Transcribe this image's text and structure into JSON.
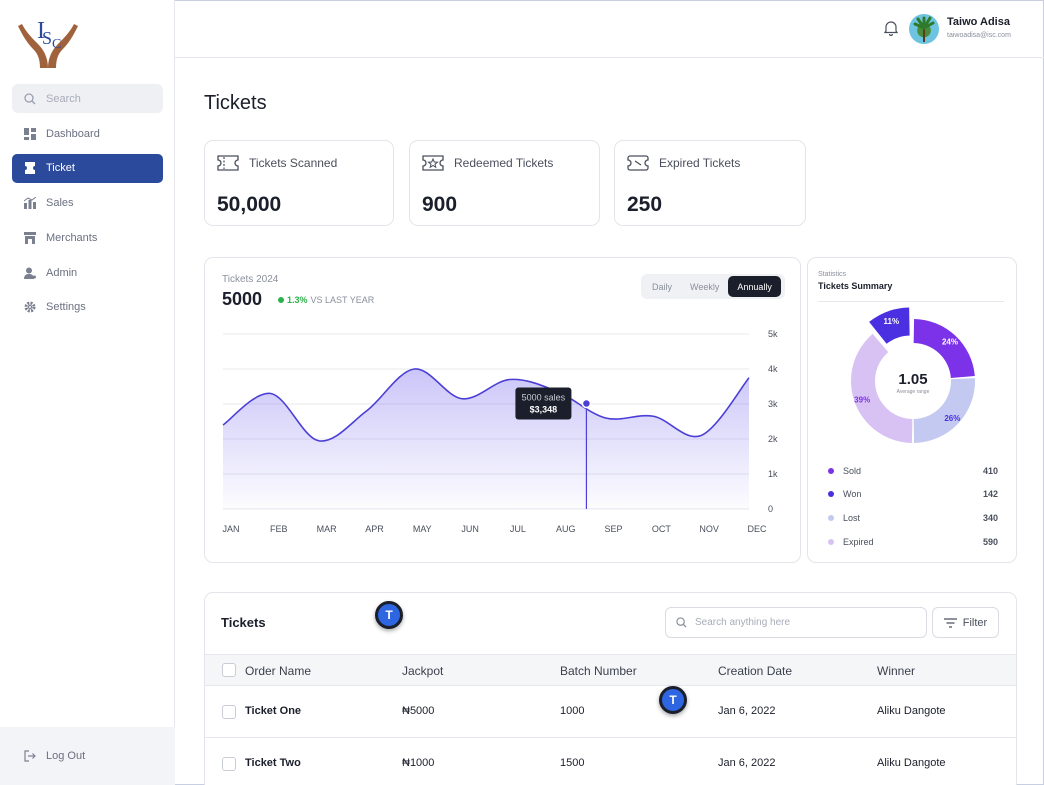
{
  "user": {
    "name": "Taiwo Adisa",
    "email": "taiwoadisa@isc.com"
  },
  "sidebar": {
    "search_placeholder": "Search",
    "items": [
      {
        "label": "Dashboard",
        "icon": "dashboard-icon",
        "active": false
      },
      {
        "label": "Ticket",
        "icon": "ticket-icon",
        "active": true
      },
      {
        "label": "Sales",
        "icon": "sales-chart-icon",
        "active": false
      },
      {
        "label": "Merchants",
        "icon": "store-icon",
        "active": false
      },
      {
        "label": "Admin",
        "icon": "user-icon",
        "active": false
      },
      {
        "label": "Settings",
        "icon": "gear-icon",
        "active": false
      }
    ],
    "logout_label": "Log Out"
  },
  "page": {
    "title": "Tickets"
  },
  "stats": [
    {
      "label": "Tickets Scanned",
      "value": "50,000",
      "icon": "ticket-scan-icon"
    },
    {
      "label": "Redeemed Tickets",
      "value": "900",
      "icon": "ticket-redeem-icon"
    },
    {
      "label": "Expired Tickets",
      "value": "250",
      "icon": "ticket-expired-icon"
    }
  ],
  "sales_chart": {
    "subtitle": "Tickets 2024",
    "value": "5000",
    "change_pct": "1.3%",
    "change_label": "VS LAST YEAR",
    "periods": [
      "Daily",
      "Weekly",
      "Annually"
    ],
    "active_period": "Annually",
    "tooltip": {
      "line1": "5000 sales",
      "line2": "$3,348"
    }
  },
  "chart_data": {
    "type": "area",
    "categories": [
      "JAN",
      "FEB",
      "MAR",
      "APR",
      "MAY",
      "JUN",
      "JUL",
      "AUG",
      "SEP",
      "OCT",
      "NOV",
      "DEC"
    ],
    "values": [
      2400,
      3300,
      1950,
      2800,
      4000,
      3150,
      3700,
      3350,
      2600,
      2650,
      2100,
      3750
    ],
    "y_ticks": [
      "0",
      "1k",
      "2k",
      "3k",
      "4k",
      "5k"
    ],
    "ylim": [
      0,
      5000
    ],
    "highlight_position": 7.6,
    "line_color": "#4b3fd6",
    "grid": true
  },
  "summary": {
    "subtitle": "Statistics",
    "title": "Tickets Summary",
    "center_value": "1.05",
    "center_label": "Average range",
    "items": [
      {
        "label": "Sold",
        "value": "410",
        "pct": "24%",
        "color": "#7c32e8"
      },
      {
        "label": "Won",
        "value": "142",
        "pct": "11%",
        "color": "#4a30e0"
      },
      {
        "label": "Lost",
        "value": "340",
        "pct": "26%",
        "color": "#c3c9f0"
      },
      {
        "label": "Expired",
        "value": "590",
        "pct": "39%",
        "color": "#d8c2f3"
      }
    ]
  },
  "tickets_table": {
    "title": "Tickets",
    "search_placeholder": "Search anything here",
    "filter_label": "Filter",
    "columns": [
      "Order Name",
      "Jackpot",
      "Batch Number",
      "Creation Date",
      "Winner"
    ],
    "rows": [
      {
        "order": "Ticket One",
        "jackpot": "₦5000",
        "batch": "1000",
        "date": "Jan 6, 2022",
        "winner": "Aliku Dangote"
      },
      {
        "order": "Ticket Two",
        "jackpot": "₦1000",
        "batch": "1500",
        "date": "Jan 6, 2022",
        "winner": "Aliku Dangote"
      }
    ]
  },
  "markers": [
    {
      "label": "T"
    },
    {
      "label": "T"
    }
  ]
}
